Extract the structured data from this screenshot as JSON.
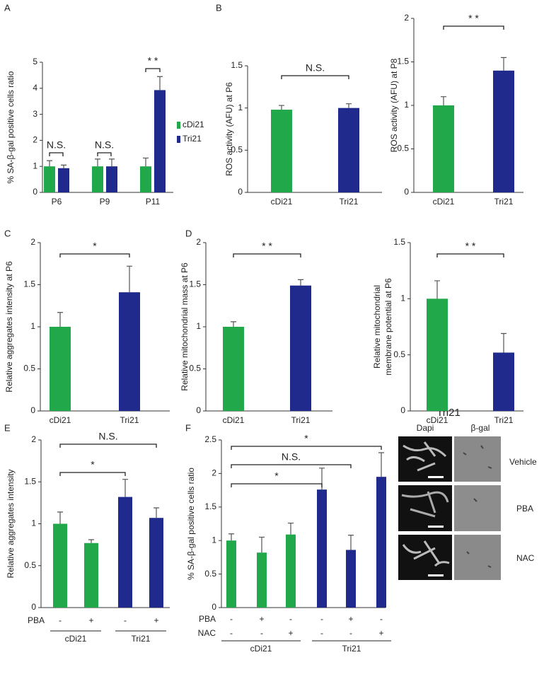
{
  "chart_data": [
    {
      "type": "grouped_bar",
      "panel_label": "A",
      "ylabel": "% SA-β-gal positive cells ratio",
      "categories": [
        "P6",
        "P9",
        "P11"
      ],
      "series": [
        {
          "name": "cDi21",
          "color": "#21a84a",
          "values": [
            1,
            1,
            1
          ],
          "errors": [
            0.22,
            0.28,
            0.32
          ]
        },
        {
          "name": "Tri21",
          "color": "#1f2a8c",
          "values": [
            0.93,
            1.0,
            3.93
          ],
          "errors": [
            0.12,
            0.28,
            0.52
          ]
        }
      ],
      "ylim": [
        0,
        5
      ],
      "yticks": [
        0,
        1,
        2,
        3,
        4,
        5
      ],
      "annotations": [
        "N.S.",
        "N.S.",
        "* *"
      ]
    },
    {
      "type": "bar",
      "panel_label": "B",
      "ylabel": "ROS activity (AFU) at P6",
      "categories": [
        "cDi21",
        "Tri21"
      ],
      "values": [
        0.98,
        1.0
      ],
      "errors": [
        0.05,
        0.05
      ],
      "colors": [
        "#21a84a",
        "#1f2a8c"
      ],
      "ylim": [
        0,
        1.5
      ],
      "yticks": [
        0,
        0.5,
        1,
        1.5
      ],
      "annotations": [
        "N.S."
      ]
    },
    {
      "type": "bar",
      "ylabel": "ROS activity (AFU) at P8",
      "categories": [
        "cDi21",
        "Tri21"
      ],
      "values": [
        1.0,
        1.4
      ],
      "errors": [
        0.1,
        0.15
      ],
      "colors": [
        "#21a84a",
        "#1f2a8c"
      ],
      "ylim": [
        0,
        2
      ],
      "yticks": [
        0,
        0.5,
        1,
        1.5,
        2
      ],
      "annotations": [
        "* *"
      ]
    },
    {
      "type": "bar",
      "panel_label": "C",
      "ylabel": "Relative aggregates intensity at P6",
      "categories": [
        "cDi21",
        "Tri21"
      ],
      "values": [
        1.0,
        1.41
      ],
      "errors": [
        0.17,
        0.31
      ],
      "colors": [
        "#21a84a",
        "#1f2a8c"
      ],
      "ylim": [
        0,
        2
      ],
      "yticks": [
        0,
        0.5,
        1,
        1.5,
        2
      ],
      "annotations": [
        "*"
      ]
    },
    {
      "type": "bar",
      "panel_label": "D",
      "ylabel": "Relative mitochondrial mass at P6",
      "categories": [
        "cDi21",
        "Tri21"
      ],
      "values": [
        1.0,
        1.49
      ],
      "errors": [
        0.06,
        0.07
      ],
      "colors": [
        "#21a84a",
        "#1f2a8c"
      ],
      "ylim": [
        0,
        2
      ],
      "yticks": [
        0,
        0.5,
        1,
        1.5,
        2
      ],
      "annotations": [
        "* *"
      ]
    },
    {
      "type": "bar",
      "ylabel": [
        "Relative mitochondrial",
        "membrane potential at P6"
      ],
      "categories": [
        "cDi21",
        "Tri21"
      ],
      "values": [
        1.0,
        0.52
      ],
      "errors": [
        0.16,
        0.17
      ],
      "colors": [
        "#21a84a",
        "#1f2a8c"
      ],
      "ylim": [
        0,
        1.5
      ],
      "yticks": [
        0,
        0.5,
        1,
        1.5
      ],
      "annotations": [
        "* *"
      ]
    },
    {
      "type": "bar",
      "panel_label": "E",
      "ylabel": "Relative aggregates intensity",
      "values": [
        1.0,
        0.77,
        1.32,
        1.07
      ],
      "errors": [
        0.14,
        0.04,
        0.21,
        0.12
      ],
      "colors": [
        "#21a84a",
        "#21a84a",
        "#1f2a8c",
        "#1f2a8c"
      ],
      "ylim": [
        0,
        2
      ],
      "yticks": [
        0,
        0.5,
        1,
        1.5,
        2
      ],
      "conditions": [
        {
          "name": "PBA",
          "values": [
            "-",
            "+",
            "-",
            "+"
          ]
        }
      ],
      "groups": [
        "cDi21",
        "Tri21"
      ],
      "annotations": [
        "N.S.",
        "*"
      ]
    },
    {
      "type": "bar",
      "panel_label": "F",
      "ylabel": "% SA-β-gal positive cells ratio",
      "values": [
        1.0,
        0.82,
        1.09,
        1.76,
        0.86,
        1.95
      ],
      "errors": [
        0.1,
        0.23,
        0.17,
        0.32,
        0.22,
        0.36
      ],
      "colors": [
        "#21a84a",
        "#21a84a",
        "#21a84a",
        "#1f2a8c",
        "#1f2a8c",
        "#1f2a8c"
      ],
      "ylim": [
        0,
        2.5
      ],
      "yticks": [
        0,
        0.5,
        1,
        1.5,
        2,
        2.5
      ],
      "conditions": [
        {
          "name": "PBA",
          "values": [
            "-",
            "+",
            "-",
            "-",
            "+",
            "-"
          ]
        },
        {
          "name": "NAC",
          "values": [
            "-",
            "-",
            "+",
            "-",
            "-",
            "+"
          ]
        }
      ],
      "groups": [
        "cDi21",
        "Tri21"
      ],
      "annotations": [
        "*",
        "N.S.",
        "*"
      ]
    }
  ],
  "image_panel": {
    "title": "Tri21",
    "columns": [
      "Dapi",
      "β-gal"
    ],
    "rows": [
      "Vehicle",
      "PBA",
      "NAC"
    ]
  }
}
